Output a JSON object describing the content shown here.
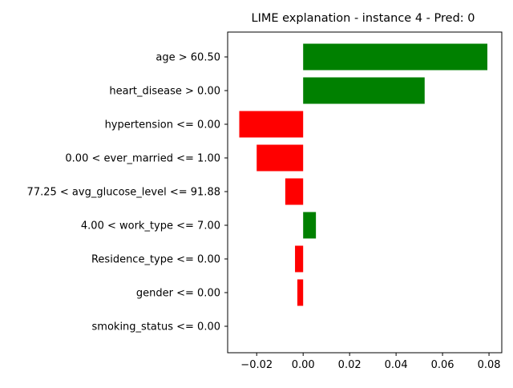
{
  "chart_data": {
    "type": "bar",
    "orientation": "horizontal",
    "title": "LIME explanation - instance 4 - Pred: 0",
    "xlabel": "",
    "ylabel": "",
    "categories": [
      "age > 60.50",
      "heart_disease > 0.00",
      "hypertension <= 0.00",
      "0.00 < ever_married <= 1.00",
      "77.25 < avg_glucose_level <= 91.88",
      "4.00 < work_type <= 7.00",
      "Residence_type <= 0.00",
      "gender <= 0.00",
      "smoking_status <= 0.00"
    ],
    "values": [
      0.0793,
      0.0523,
      -0.0275,
      -0.02,
      -0.0077,
      0.0055,
      -0.0035,
      -0.0025,
      0.0
    ],
    "xlim": [
      -0.0325,
      0.0855
    ],
    "xticks": [
      -0.02,
      0.0,
      0.02,
      0.04,
      0.06,
      0.08
    ],
    "xtick_labels": [
      "−0.02",
      "0.00",
      "0.02",
      "0.04",
      "0.06",
      "0.08"
    ],
    "grid": false,
    "legend": "none",
    "colors": {
      "positive": "#008000",
      "negative": "#ff0000",
      "axis": "#000000"
    }
  }
}
